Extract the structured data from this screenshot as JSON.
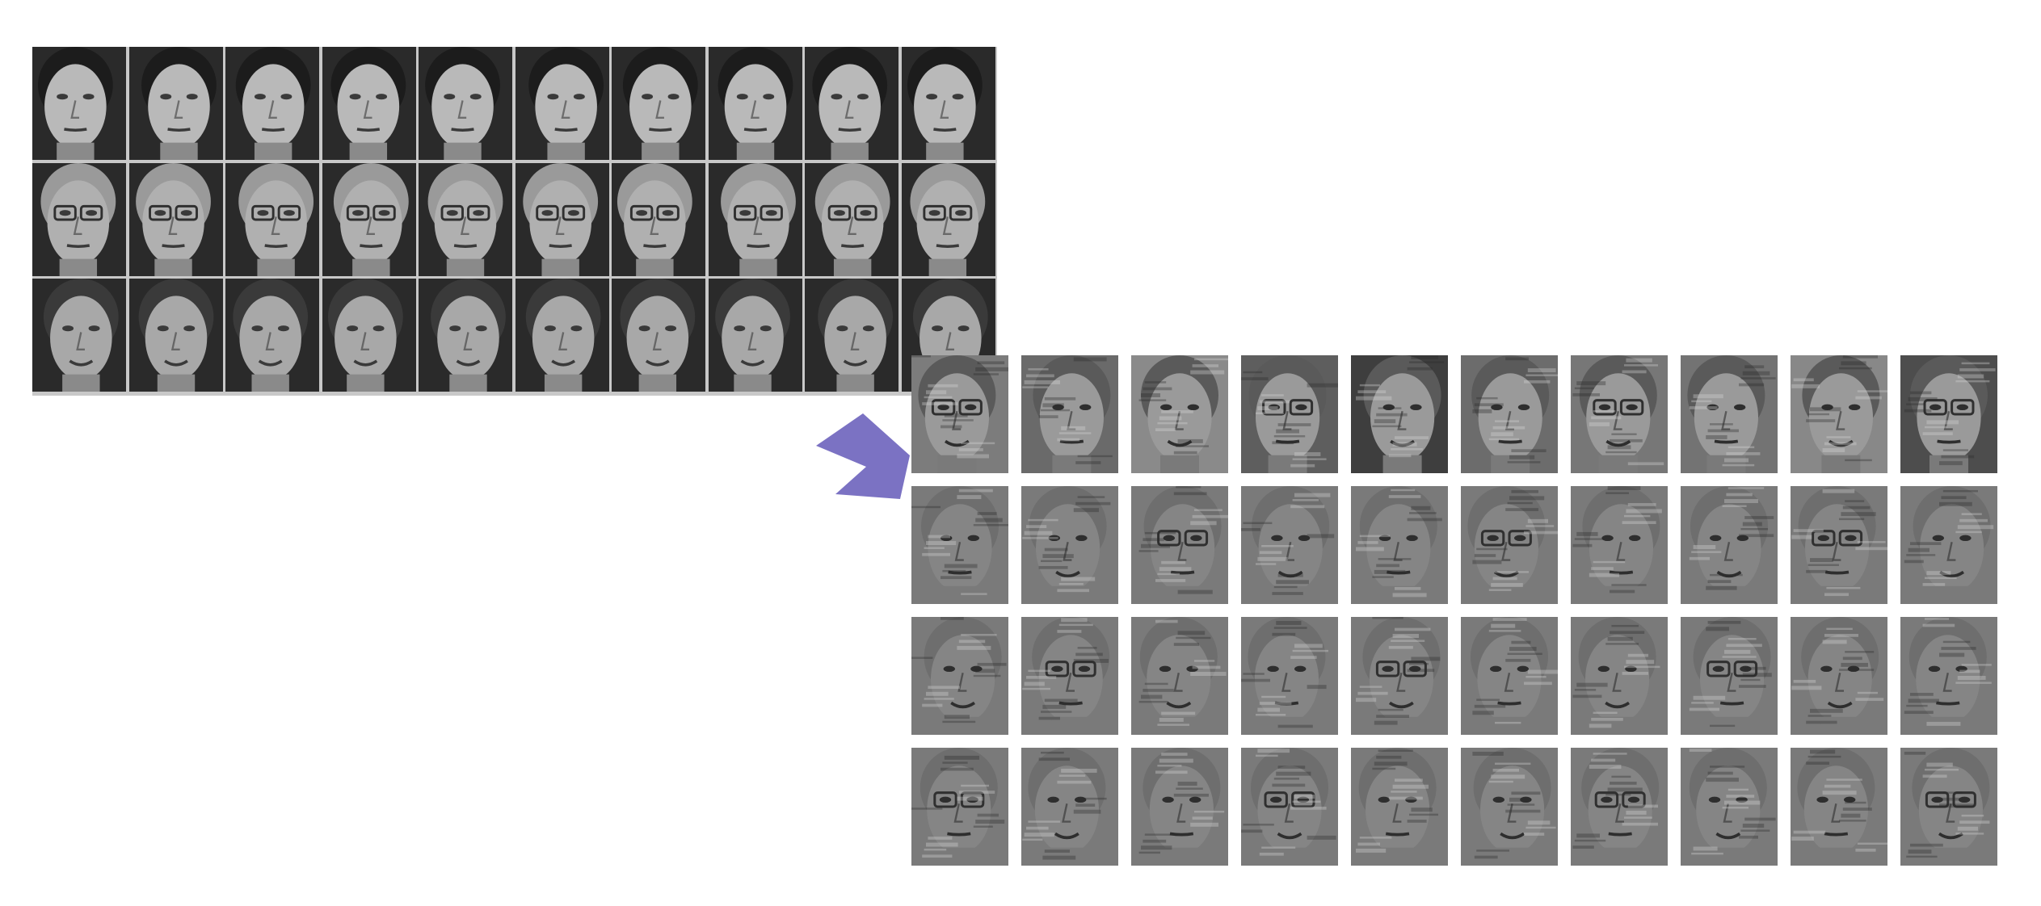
{
  "colors": {
    "background": "#ffffff",
    "arrow": "#7b72c3",
    "source_grid_line": "#c8c8c8",
    "photo_background": "#2a2a2a",
    "eigen_background": "#7a7a7a"
  },
  "source_faces": {
    "rows": 3,
    "columns": 10,
    "subjects": [
      {
        "subject": "young-man-dark-hair",
        "glasses": false,
        "hair_shade": "#1c1c1c",
        "skin_shade": "#b9b9b9"
      },
      {
        "subject": "man-with-glasses-gray-hair",
        "glasses": true,
        "hair_shade": "#9a9a9a",
        "skin_shade": "#b0b0b0"
      },
      {
        "subject": "smiling-man-short-hair",
        "glasses": false,
        "hair_shade": "#3a3a3a",
        "skin_shade": "#a8a8a8"
      }
    ]
  },
  "eigenfaces": {
    "rows": 4,
    "columns": 10,
    "first_row_shades": [
      "#7c7c7c",
      "#6a6a6a",
      "#8a8a8a",
      "#5e5e5e",
      "#3e3e3e",
      "#6c6c6c",
      "#777777",
      "#737373",
      "#888888",
      "#4d4d4d"
    ]
  },
  "arrow_icon": "chevron-right-arrow-icon"
}
